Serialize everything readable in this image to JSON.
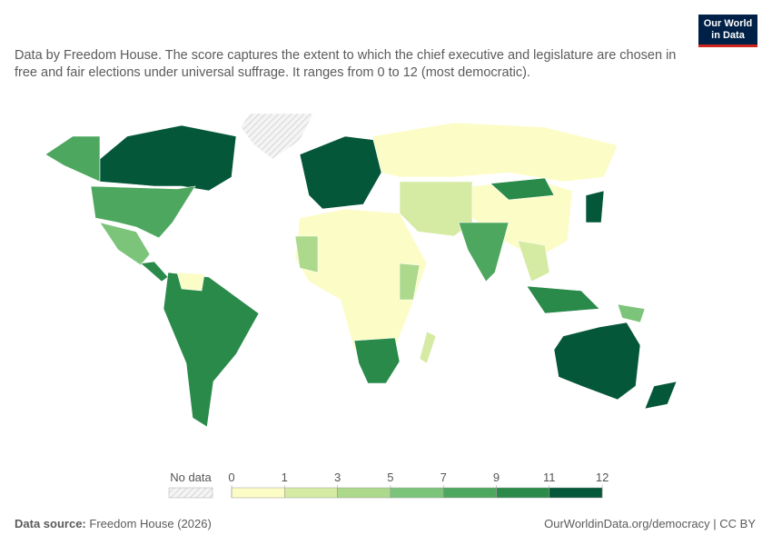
{
  "logo": [
    "Our World",
    "in Data"
  ],
  "subtitle": "Data by Freedom House. The score captures the extent to which the chief executive and legislature are chosen in free and fair elections under universal suffrage. It ranges from 0 to 12 (most democratic).",
  "legend": {
    "no_data": "No data",
    "ticks": [
      0,
      1,
      3,
      5,
      7,
      9,
      11,
      12
    ],
    "colors": [
      "#fcfcc6",
      "#d5eaa2",
      "#acd98b",
      "#7cc47a",
      "#4ea75f",
      "#2a8a4a",
      "#05573a"
    ]
  },
  "footer": {
    "source_label": "Data source:",
    "source": "Freedom House (2026)",
    "link": "OurWorldinData.org/democracy | CC BY"
  }
}
